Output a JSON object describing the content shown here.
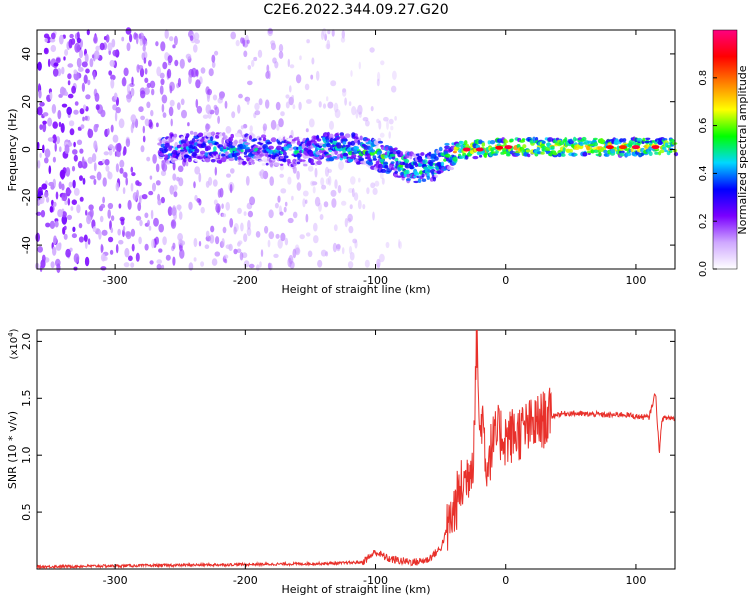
{
  "title": "C2E6.2022.344.09.27.G20",
  "chart_data": [
    {
      "type": "heatmap",
      "xlabel": "Height of straight line (km)",
      "ylabel": "Frequency (Hz)",
      "xlim": [
        -360,
        130
      ],
      "ylim": [
        -50,
        50
      ],
      "x_ticks": [
        -300,
        -200,
        -100,
        0,
        100
      ],
      "y_ticks": [
        -40,
        -20,
        0,
        20,
        40
      ],
      "colorbar": {
        "label": "Normalized spectral amplitude",
        "range": [
          0.0,
          1.0
        ],
        "ticks": [
          "0.0",
          "0.2",
          "0.4",
          "0.6",
          "0.8"
        ],
        "colors": [
          "#ffffff",
          "#cfa8ff",
          "#7a00ff",
          "#0000ff",
          "#00d8ff",
          "#00ff00",
          "#ffff00",
          "#ff8000",
          "#ff0000",
          "#ff0080"
        ]
      },
      "ridge": [
        {
          "x": -270,
          "freq": 0
        },
        {
          "x": -240,
          "freq": 1
        },
        {
          "x": -200,
          "freq": 0
        },
        {
          "x": -160,
          "freq": -1
        },
        {
          "x": -130,
          "freq": 1
        },
        {
          "x": -110,
          "freq": 0
        },
        {
          "x": -90,
          "freq": -4
        },
        {
          "x": -70,
          "freq": -8
        },
        {
          "x": -55,
          "freq": -7
        },
        {
          "x": -45,
          "freq": -3
        },
        {
          "x": -35,
          "freq": 0
        },
        {
          "x": -20,
          "freq": 0
        },
        {
          "x": 0,
          "freq": 1
        },
        {
          "x": 50,
          "freq": 1
        },
        {
          "x": 100,
          "freq": 1
        },
        {
          "x": 130,
          "freq": 1
        }
      ]
    },
    {
      "type": "line",
      "xlabel": "Height of straight line (km)",
      "ylabel": "SNR (10 * v/v)",
      "y_multiplier": "(x10",
      "y_multiplier_exp": "4",
      "y_multiplier_close": ")",
      "xlim": [
        -360,
        130
      ],
      "ylim": [
        0,
        21000
      ],
      "x_ticks": [
        -300,
        -200,
        -100,
        0,
        100
      ],
      "y_ticks": [
        {
          "value": 5000,
          "label": "0.5"
        },
        {
          "value": 10000,
          "label": "1.0"
        },
        {
          "value": 15000,
          "label": "1.5"
        },
        {
          "value": 20000,
          "label": "2.0"
        }
      ],
      "color": "#e8302a",
      "series": [
        {
          "x": [
            -360,
            -320,
            -280,
            -240,
            -200,
            -160,
            -130,
            -110,
            -100,
            -90,
            -80,
            -70,
            -60,
            -50,
            -45,
            -40,
            -35,
            -30,
            -25,
            -22,
            -20,
            -18,
            -15,
            -10,
            -5,
            0,
            10,
            20,
            30,
            40,
            50,
            60,
            70,
            80,
            90,
            100,
            110,
            115,
            118,
            120,
            125,
            130
          ],
          "y": [
            200,
            250,
            300,
            350,
            400,
            450,
            500,
            600,
            1500,
            900,
            700,
            600,
            800,
            1800,
            3500,
            5000,
            7000,
            8000,
            10000,
            21000,
            11000,
            14000,
            9000,
            11000,
            12000,
            11500,
            12000,
            12500,
            13200,
            13600,
            13700,
            13600,
            13600,
            13500,
            13600,
            13400,
            13300,
            15500,
            10200,
            13200,
            13300,
            13200
          ]
        }
      ]
    }
  ]
}
